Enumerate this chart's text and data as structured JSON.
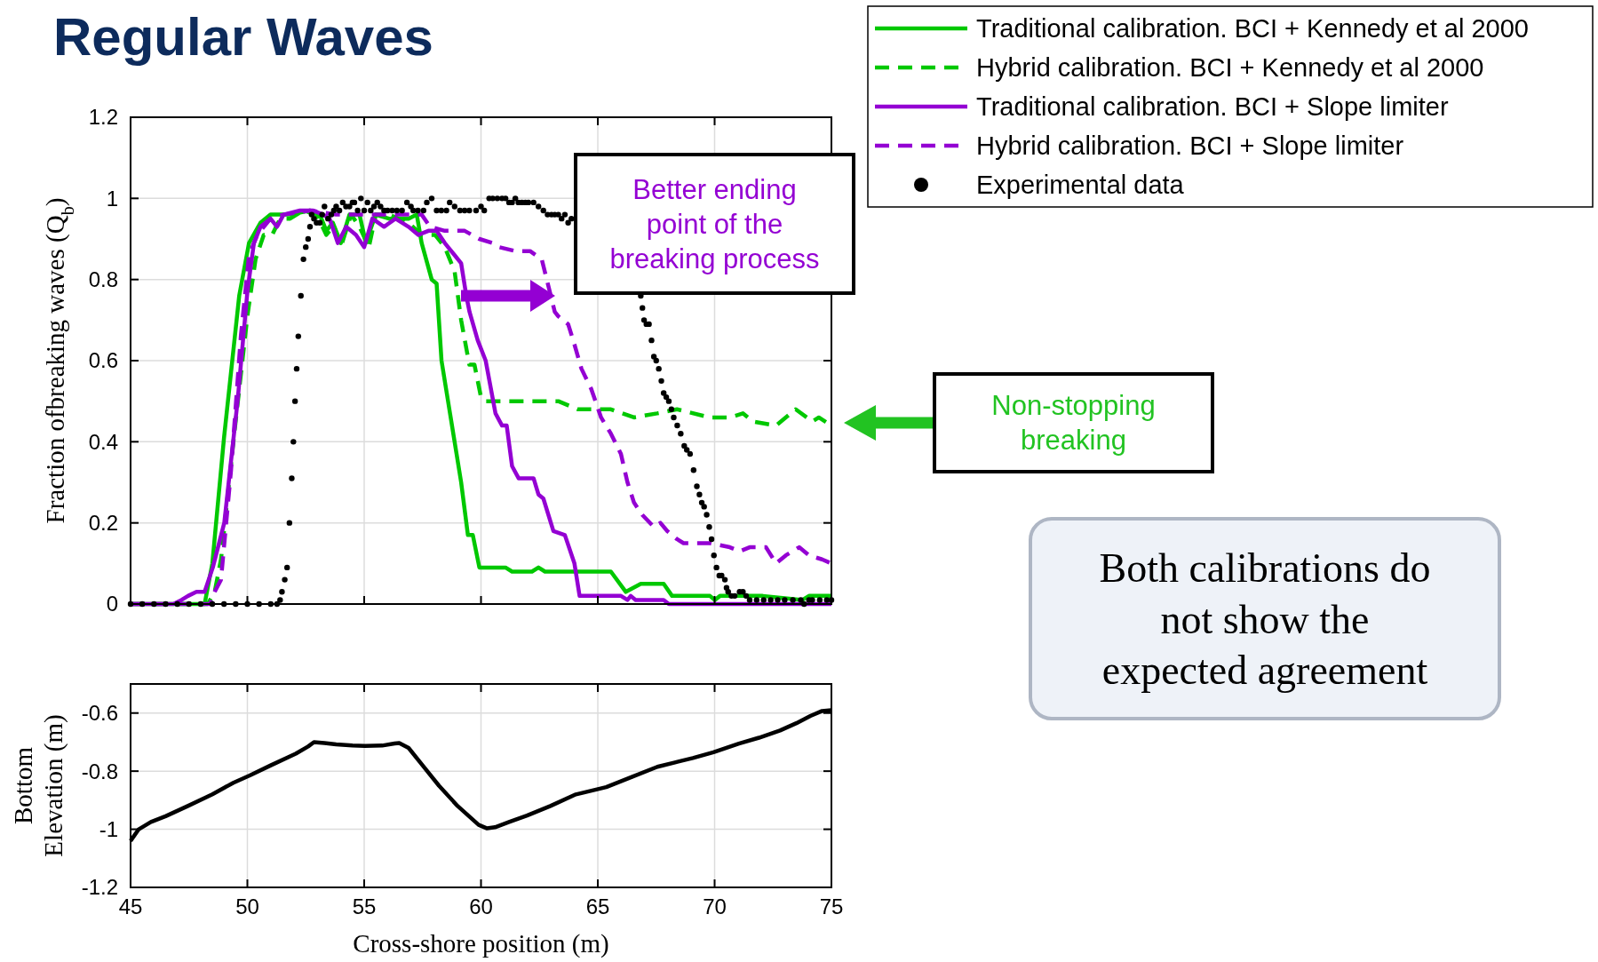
{
  "chart_data": [
    {
      "type": "line",
      "title": "Regular Waves",
      "ylabel": "Fraction ofbreaking waves (Q$_{b}$)",
      "xlim": [
        45,
        75
      ],
      "xticks": [
        45,
        50,
        55,
        60,
        65,
        70,
        75
      ],
      "ylim": [
        0,
        1.2
      ],
      "yticks": [
        0,
        0.2,
        0.4,
        0.6,
        0.8,
        1,
        1.2
      ],
      "grid": true,
      "tick_labels": "y",
      "legend": "top right",
      "series": [
        {
          "name": "Traditional calibration. BCI + Kennedy et al 2000",
          "color": "#00c800",
          "line_style": "solid",
          "x": [
            45,
            48.17,
            48.5,
            49.0,
            49.65,
            50.07,
            50.56,
            50.99,
            51.83,
            52.68,
            53.1,
            53.38,
            53.66,
            54.0,
            54.37,
            54.8,
            55.07,
            55.49,
            56.06,
            56.9,
            57.25,
            57.46,
            57.89,
            58.1,
            58.31,
            59.15,
            59.44,
            59.65,
            59.93,
            61.05,
            61.33,
            62.18,
            62.46,
            62.74,
            64.15,
            65.56,
            66.2,
            66.84,
            67.82,
            68.18,
            69.8,
            70.01,
            70.23,
            72.06,
            73.76,
            74.04,
            75
          ],
          "values": [
            0,
            0,
            0.1,
            0.41,
            0.76,
            0.89,
            0.94,
            0.96,
            0.96,
            0.97,
            0.96,
            0.92,
            0.94,
            0.89,
            0.96,
            0.96,
            0.89,
            0.96,
            0.95,
            0.95,
            0.96,
            0.89,
            0.8,
            0.79,
            0.6,
            0.3,
            0.17,
            0.17,
            0.09,
            0.09,
            0.08,
            0.08,
            0.09,
            0.08,
            0.08,
            0.08,
            0.03,
            0.05,
            0.05,
            0.02,
            0.02,
            0.01,
            0.02,
            0.02,
            0.01,
            0.02,
            0.02
          ]
        },
        {
          "name": "Hybrid calibration. BCI + Kennedy et al 2000",
          "color": "#00c800",
          "line_style": "dashed",
          "x": [
            45,
            48.3,
            48.6,
            48.87,
            49.44,
            50.0,
            50.35,
            50.7,
            51.06,
            51.4,
            51.83,
            52.4,
            52.96,
            53.38,
            53.66,
            54.0,
            54.44,
            54.8,
            55.2,
            55.5,
            56.06,
            56.9,
            57.46,
            58.03,
            58.45,
            58.87,
            59.15,
            59.5,
            59.72,
            60.0,
            60.2,
            63.31,
            64.15,
            65.56,
            66.55,
            67.54,
            68.39,
            69.8,
            70.65,
            71.21,
            71.64,
            72.63,
            73.47,
            74.18,
            74.46,
            75
          ],
          "values": [
            0,
            0,
            0.03,
            0.11,
            0.42,
            0.71,
            0.85,
            0.91,
            0.91,
            0.95,
            0.95,
            0.97,
            0.96,
            0.91,
            0.93,
            0.88,
            0.96,
            0.93,
            0.88,
            0.96,
            0.96,
            0.94,
            0.91,
            0.91,
            0.88,
            0.82,
            0.7,
            0.59,
            0.59,
            0.51,
            0.5,
            0.5,
            0.48,
            0.48,
            0.46,
            0.47,
            0.48,
            0.46,
            0.46,
            0.47,
            0.45,
            0.44,
            0.48,
            0.45,
            0.46,
            0.44
          ]
        },
        {
          "name": "Traditional calibration. BCI + Slope limiter",
          "color": "#9400d3",
          "line_style": "solid",
          "x": [
            45,
            46.83,
            47.18,
            47.46,
            47.82,
            48.17,
            48.52,
            49.01,
            49.58,
            50.0,
            50.28,
            50.56,
            50.99,
            51.27,
            51.55,
            52.25,
            52.82,
            53.24,
            53.52,
            53.87,
            54.23,
            54.65,
            55.0,
            55.35,
            55.85,
            56.34,
            56.9,
            57.32,
            57.75,
            58.1,
            58.45,
            58.87,
            59.15,
            59.37,
            59.51,
            59.86,
            60.2,
            60.62,
            60.9,
            61.1,
            61.33,
            61.61,
            62.03,
            62.25,
            62.46,
            62.67,
            63.1,
            63.59,
            64.0,
            64.22,
            65.99,
            66.27,
            66.41,
            66.62,
            67.82,
            68.04,
            75
          ],
          "values": [
            0,
            0,
            0.01,
            0.02,
            0.03,
            0.03,
            0.09,
            0.2,
            0.5,
            0.77,
            0.89,
            0.93,
            0.95,
            0.93,
            0.96,
            0.97,
            0.97,
            0.96,
            0.95,
            0.89,
            0.93,
            0.91,
            0.88,
            0.95,
            0.93,
            0.95,
            0.93,
            0.91,
            0.92,
            0.92,
            0.89,
            0.86,
            0.84,
            0.76,
            0.72,
            0.65,
            0.6,
            0.47,
            0.44,
            0.44,
            0.34,
            0.31,
            0.31,
            0.31,
            0.27,
            0.26,
            0.18,
            0.17,
            0.1,
            0.02,
            0.02,
            0.01,
            0.02,
            0.01,
            0.01,
            0,
            0
          ]
        },
        {
          "name": "Hybrid calibration. BCI + Slope limiter",
          "color": "#9400d3",
          "line_style": "dashed",
          "x": [
            45,
            48.4,
            48.6,
            48.87,
            49.3,
            49.72,
            50.07,
            50.42,
            50.99,
            51.55,
            52.68,
            53.8,
            57.46,
            57.82,
            58.45,
            59.3,
            59.93,
            60.48,
            60.76,
            61.47,
            62.1,
            62.6,
            63.16,
            63.3,
            63.73,
            64.0,
            64.3,
            64.72,
            65.14,
            65.56,
            65.99,
            66.27,
            66.55,
            66.9,
            67.4,
            67.68,
            67.97,
            68.39,
            68.67,
            69.8,
            70.65,
            71.07,
            71.5,
            72.2,
            72.63,
            73.05,
            73.62,
            74.04,
            74.6,
            75
          ],
          "values": [
            0,
            0,
            0.03,
            0.06,
            0.33,
            0.66,
            0.86,
            0.91,
            0.95,
            0.96,
            0.97,
            0.96,
            0.96,
            0.93,
            0.92,
            0.92,
            0.9,
            0.89,
            0.88,
            0.87,
            0.87,
            0.85,
            0.72,
            0.71,
            0.69,
            0.64,
            0.58,
            0.53,
            0.46,
            0.42,
            0.37,
            0.3,
            0.25,
            0.22,
            0.19,
            0.2,
            0.18,
            0.16,
            0.15,
            0.15,
            0.14,
            0.13,
            0.14,
            0.14,
            0.1,
            0.12,
            0.14,
            0.12,
            0.11,
            0.1
          ]
        },
        {
          "name": "Experimental data",
          "type": "scatter",
          "color": "#000000",
          "x": [
            45,
            45.5,
            46,
            46.5,
            47,
            47.5,
            48,
            48.5,
            49,
            49.5,
            50,
            50.5,
            51,
            51.27,
            51.4,
            51.48,
            51.6,
            51.7,
            51.8,
            51.9,
            51.97,
            52.04,
            52.11,
            52.18,
            52.29,
            52.4,
            52.5,
            52.6,
            52.68,
            52.75,
            52.85,
            52.96,
            53.1,
            53.2,
            53.3,
            53.45,
            53.59,
            53.7,
            53.8,
            53.94,
            54.08,
            54.22,
            54.37,
            54.5,
            54.58,
            54.72,
            54.86,
            55.0,
            55.14,
            55.28,
            55.42,
            55.56,
            55.7,
            55.85,
            56.0,
            56.2,
            56.4,
            56.62,
            56.83,
            57.0,
            57.1,
            57.3,
            57.54,
            57.68,
            57.89,
            58.1,
            58.3,
            58.52,
            58.66,
            58.87,
            59.1,
            59.3,
            59.5,
            59.79,
            60.0,
            60.14,
            60.35,
            60.5,
            60.7,
            60.9,
            61.05,
            61.2,
            61.33,
            61.47,
            61.6,
            61.75,
            61.9,
            62.03,
            62.25,
            62.46,
            62.67,
            62.85,
            63.02,
            63.16,
            63.31,
            63.45,
            63.59,
            63.73,
            63.87,
            66.84,
            66.91,
            66.98,
            67.08,
            67.19,
            67.3,
            67.4,
            67.5,
            67.61,
            67.72,
            67.82,
            67.93,
            68.04,
            68.15,
            68.25,
            68.4,
            68.55,
            68.7,
            68.81,
            68.95,
            69.1,
            69.24,
            69.35,
            69.45,
            69.55,
            69.66,
            69.77,
            69.87,
            69.97,
            70.08,
            70.2,
            70.3,
            70.44,
            70.51,
            70.58,
            70.72,
            70.86,
            71.07,
            71.21,
            71.35,
            71.5,
            71.8,
            72.1,
            72.4,
            72.7,
            73.0,
            73.35,
            73.69,
            73.83,
            74.04,
            74.18,
            74.5,
            74.8,
            75
          ],
          "values": [
            0,
            0,
            0,
            0,
            0,
            0,
            0,
            0,
            0,
            0,
            0,
            0,
            0,
            0,
            0.01,
            0.03,
            0.06,
            0.09,
            0.2,
            0.31,
            0.4,
            0.5,
            0.58,
            0.66,
            0.76,
            0.85,
            0.88,
            0.9,
            0.93,
            0.96,
            0.95,
            0.94,
            0.94,
            0.96,
            0.98,
            0.95,
            0.96,
            0.97,
            0.98,
            0.97,
            0.99,
            0.98,
            0.98,
            0.99,
            0.99,
            0.97,
            1.0,
            0.97,
            0.99,
            0.97,
            0.98,
            0.99,
            0.98,
            0.97,
            0.97,
            0.97,
            0.97,
            0.97,
            0.99,
            0.98,
            0.97,
            0.97,
            0.97,
            0.99,
            1.0,
            0.97,
            0.97,
            0.97,
            0.99,
            0.98,
            0.97,
            0.97,
            0.97,
            0.97,
            0.98,
            0.97,
            1.0,
            1.0,
            1.0,
            1.0,
            1.0,
            0.99,
            0.99,
            1.0,
            0.99,
            0.99,
            0.99,
            0.99,
            0.99,
            0.98,
            0.97,
            0.96,
            0.96,
            0.96,
            0.96,
            0.95,
            0.96,
            0.94,
            0.95,
            0.76,
            0.73,
            0.7,
            0.69,
            0.69,
            0.65,
            0.61,
            0.6,
            0.58,
            0.55,
            0.52,
            0.51,
            0.5,
            0.48,
            0.46,
            0.44,
            0.42,
            0.39,
            0.38,
            0.37,
            0.33,
            0.29,
            0.27,
            0.25,
            0.24,
            0.22,
            0.19,
            0.16,
            0.12,
            0.09,
            0.07,
            0.07,
            0.06,
            0.04,
            0.03,
            0.02,
            0.02,
            0.03,
            0.03,
            0.02,
            0.01,
            0.01,
            0.01,
            0.01,
            0.01,
            0.01,
            0.01,
            0.01,
            0,
            0.01,
            0.01,
            0.01,
            0.01,
            0.01
          ]
        }
      ],
      "annotations": [
        "Better ending point of the breaking process",
        "Non-stopping breaking",
        "Both calibrations do not show the expected agreement"
      ]
    },
    {
      "type": "line",
      "xlabel": "Cross-shore position (m)",
      "ylabel": "Bottom Elevation (m)",
      "xlim": [
        45,
        75
      ],
      "xticks": [
        45,
        50,
        55,
        60,
        65,
        70,
        75
      ],
      "ylim": [
        -1.2,
        -0.5
      ],
      "yticks": [
        -1.2,
        -1,
        -0.8,
        -0.6
      ],
      "grid": true,
      "series": [
        {
          "color": "#000000",
          "x": [
            45,
            45.35,
            45.87,
            46.5,
            47.45,
            48.5,
            49.4,
            50.1,
            51.0,
            52.07,
            52.6,
            52.85,
            53.3,
            53.8,
            54.5,
            55.03,
            55.77,
            56.3,
            56.5,
            56.9,
            57.5,
            58.2,
            59.0,
            59.9,
            60.26,
            60.6,
            61.2,
            61.97,
            62.97,
            64.06,
            65.36,
            66.46,
            67.55,
            68.3,
            69.07,
            69.95,
            71.04,
            71.9,
            72.8,
            73.5,
            74.1,
            74.6,
            75
          ],
          "values": [
            -1.04,
            -1.0,
            -0.975,
            -0.955,
            -0.92,
            -0.88,
            -0.84,
            -0.815,
            -0.78,
            -0.74,
            -0.715,
            -0.7,
            -0.703,
            -0.708,
            -0.712,
            -0.713,
            -0.712,
            -0.705,
            -0.703,
            -0.72,
            -0.78,
            -0.85,
            -0.92,
            -0.985,
            -0.997,
            -0.993,
            -0.975,
            -0.953,
            -0.92,
            -0.88,
            -0.855,
            -0.82,
            -0.785,
            -0.77,
            -0.755,
            -0.735,
            -0.705,
            -0.685,
            -0.66,
            -0.635,
            -0.61,
            -0.593,
            -0.59
          ]
        }
      ]
    }
  ]
}
